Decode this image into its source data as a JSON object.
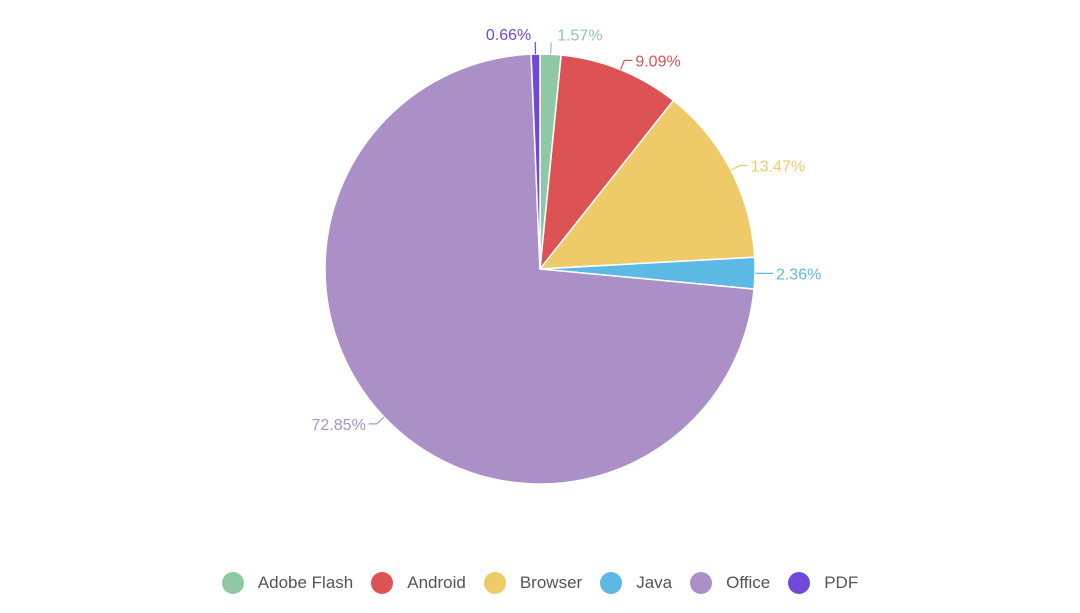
{
  "chart_data": {
    "type": "pie",
    "categories": [
      "Adobe Flash",
      "Android",
      "Browser",
      "Java",
      "Office",
      "PDF"
    ],
    "values": [
      1.57,
      9.09,
      13.47,
      2.36,
      72.85,
      0.66
    ],
    "value_labels": [
      "1.57%",
      "9.09%",
      "13.47%",
      "2.36%",
      "72.85%",
      "0.66%"
    ],
    "colors": [
      "#8fc8a5",
      "#dd5254",
      "#eecb68",
      "#5cb9e3",
      "#ab90c8",
      "#7149d8"
    ],
    "start_angle_deg": 0,
    "direction": "clockwise",
    "legend_position": "bottom",
    "title": ""
  }
}
